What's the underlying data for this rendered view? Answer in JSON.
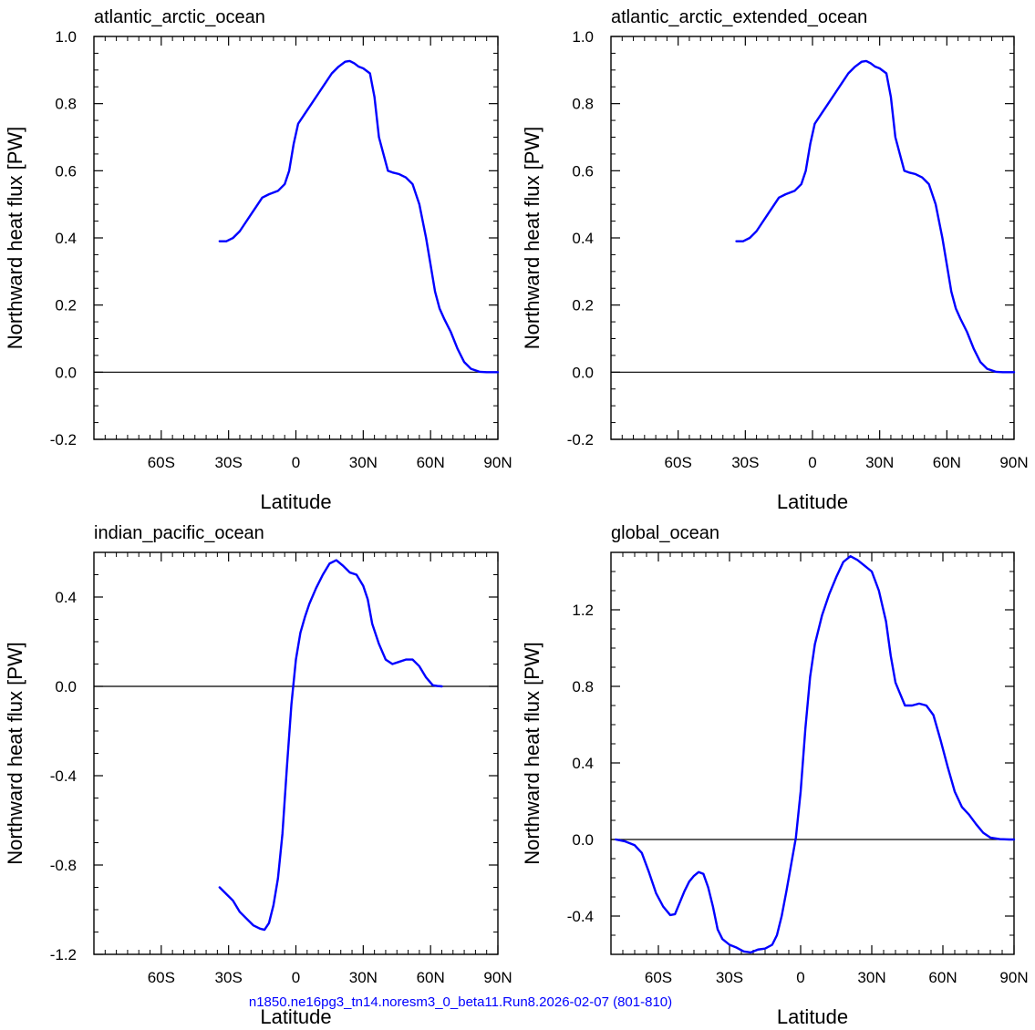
{
  "footnote": "n1850.ne16pg3_tn14.noresm3_0_beta11.Run8.2026-02-07 (801-810)",
  "colors": {
    "curve": "#0000ff",
    "axis": "#000000",
    "footnote": "#0000ff"
  },
  "chart_data": [
    {
      "type": "line",
      "title": "atlantic_arctic_ocean",
      "xlabel": "Latitude",
      "ylabel": "Northward heat flux [PW]",
      "xlim": [
        -90,
        90
      ],
      "ylim": [
        -0.2,
        1.0
      ],
      "xticks": [
        -60,
        -30,
        0,
        30,
        60,
        90
      ],
      "xtick_labels": [
        "60S",
        "30S",
        "0",
        "30N",
        "60N",
        "90N"
      ],
      "yticks": [
        -0.2,
        0.0,
        0.2,
        0.4,
        0.6,
        0.8,
        1.0
      ],
      "ytick_labels": [
        "-0.2",
        "0.0",
        "0.2",
        "0.4",
        "0.6",
        "0.8",
        "1.0"
      ],
      "zero_line": true,
      "series": [
        {
          "x": [
            -34,
            -31,
            -28,
            -25,
            -23,
            -20,
            -17,
            -15,
            -12,
            -8,
            -5,
            -3,
            -1,
            1,
            4,
            7,
            10,
            13,
            16,
            19,
            22,
            24,
            26,
            28,
            30,
            33,
            35,
            37,
            39,
            41,
            43,
            46,
            49,
            52,
            55,
            58,
            60,
            62,
            64,
            66,
            69,
            72,
            75,
            78,
            82,
            85,
            88,
            90
          ],
          "y": [
            0.39,
            0.39,
            0.4,
            0.42,
            0.44,
            0.47,
            0.5,
            0.52,
            0.53,
            0.54,
            0.56,
            0.6,
            0.68,
            0.74,
            0.77,
            0.8,
            0.83,
            0.86,
            0.89,
            0.91,
            0.925,
            0.927,
            0.92,
            0.91,
            0.905,
            0.89,
            0.82,
            0.7,
            0.65,
            0.6,
            0.595,
            0.59,
            0.58,
            0.56,
            0.5,
            0.4,
            0.32,
            0.24,
            0.19,
            0.16,
            0.12,
            0.07,
            0.03,
            0.01,
            0.001,
            0.0,
            0.0,
            0.0
          ]
        }
      ]
    },
    {
      "type": "line",
      "title": "atlantic_arctic_extended_ocean",
      "xlabel": "Latitude",
      "ylabel": "Northward heat flux [PW]",
      "xlim": [
        -90,
        90
      ],
      "ylim": [
        -0.2,
        1.0
      ],
      "xticks": [
        -60,
        -30,
        0,
        30,
        60,
        90
      ],
      "xtick_labels": [
        "60S",
        "30S",
        "0",
        "30N",
        "60N",
        "90N"
      ],
      "yticks": [
        -0.2,
        0.0,
        0.2,
        0.4,
        0.6,
        0.8,
        1.0
      ],
      "ytick_labels": [
        "-0.2",
        "0.0",
        "0.2",
        "0.4",
        "0.6",
        "0.8",
        "1.0"
      ],
      "zero_line": true,
      "series": [
        {
          "x": [
            -34,
            -31,
            -28,
            -25,
            -23,
            -20,
            -17,
            -15,
            -12,
            -8,
            -5,
            -3,
            -1,
            1,
            4,
            7,
            10,
            13,
            16,
            19,
            22,
            24,
            26,
            28,
            30,
            33,
            35,
            37,
            39,
            41,
            43,
            46,
            49,
            52,
            55,
            58,
            60,
            62,
            64,
            66,
            69,
            72,
            75,
            78,
            82,
            85,
            88,
            90
          ],
          "y": [
            0.39,
            0.39,
            0.4,
            0.42,
            0.44,
            0.47,
            0.5,
            0.52,
            0.53,
            0.54,
            0.56,
            0.6,
            0.68,
            0.74,
            0.77,
            0.8,
            0.83,
            0.86,
            0.89,
            0.91,
            0.925,
            0.927,
            0.92,
            0.91,
            0.905,
            0.89,
            0.82,
            0.7,
            0.65,
            0.6,
            0.595,
            0.59,
            0.58,
            0.56,
            0.5,
            0.4,
            0.32,
            0.24,
            0.19,
            0.16,
            0.12,
            0.07,
            0.03,
            0.01,
            0.001,
            0.0,
            0.0,
            0.0
          ]
        }
      ]
    },
    {
      "type": "line",
      "title": "indian_pacific_ocean",
      "xlabel": "Latitude",
      "ylabel": "Northward heat flux [PW]",
      "xlim": [
        -90,
        90
      ],
      "ylim": [
        -1.2,
        0.6
      ],
      "xticks": [
        -60,
        -30,
        0,
        30,
        60,
        90
      ],
      "xtick_labels": [
        "60S",
        "30S",
        "0",
        "30N",
        "60N",
        "90N"
      ],
      "yticks": [
        -1.2,
        -0.8,
        -0.4,
        0.0,
        0.4
      ],
      "ytick_labels": [
        "-1.2",
        "-0.8",
        "-0.4",
        "0.0",
        "0.4"
      ],
      "zero_line": true,
      "series": [
        {
          "x": [
            -34,
            -31,
            -28,
            -25,
            -22,
            -19,
            -16,
            -14,
            -12,
            -10,
            -8,
            -6,
            -4,
            -2,
            0,
            2,
            4,
            6,
            9,
            12,
            15,
            18,
            21,
            24,
            27,
            30,
            32,
            34,
            37,
            40,
            43,
            46,
            49,
            52,
            55,
            58,
            61,
            63,
            65
          ],
          "y": [
            -0.9,
            -0.93,
            -0.96,
            -1.01,
            -1.04,
            -1.07,
            -1.085,
            -1.09,
            -1.06,
            -0.98,
            -0.86,
            -0.66,
            -0.36,
            -0.08,
            0.12,
            0.24,
            0.31,
            0.37,
            0.44,
            0.5,
            0.55,
            0.565,
            0.54,
            0.51,
            0.5,
            0.45,
            0.39,
            0.28,
            0.19,
            0.12,
            0.1,
            0.11,
            0.12,
            0.12,
            0.09,
            0.04,
            0.005,
            0.002,
            0.0
          ]
        }
      ]
    },
    {
      "type": "line",
      "title": "global_ocean",
      "xlabel": "Latitude",
      "ylabel": "Northward heat flux [PW]",
      "xlim": [
        -80,
        90
      ],
      "ylim": [
        -0.6,
        1.5
      ],
      "xticks": [
        -60,
        -30,
        0,
        30,
        60,
        90
      ],
      "xtick_labels": [
        "60S",
        "30S",
        "0",
        "30N",
        "60N",
        "90N"
      ],
      "yticks": [
        -0.4,
        0.0,
        0.4,
        0.8,
        1.2
      ],
      "ytick_labels": [
        "-0.4",
        "0.0",
        "0.4",
        "0.8",
        "1.2"
      ],
      "zero_line": true,
      "series": [
        {
          "x": [
            -78,
            -74,
            -70,
            -67,
            -64,
            -61,
            -58,
            -55,
            -53,
            -51,
            -49,
            -47,
            -45,
            -43,
            -41,
            -39,
            -37,
            -35,
            -33,
            -30,
            -27,
            -24,
            -21,
            -18,
            -15,
            -12,
            -10,
            -8,
            -6,
            -4,
            -2,
            0,
            2,
            4,
            6,
            9,
            12,
            15,
            18,
            21,
            24,
            27,
            30,
            33,
            36,
            38,
            40,
            42,
            44,
            47,
            50,
            53,
            56,
            59,
            62,
            65,
            68,
            71,
            74,
            77,
            80,
            84,
            88,
            90
          ],
          "y": [
            0.0,
            -0.01,
            -0.03,
            -0.07,
            -0.17,
            -0.28,
            -0.35,
            -0.395,
            -0.39,
            -0.33,
            -0.27,
            -0.22,
            -0.19,
            -0.17,
            -0.18,
            -0.25,
            -0.35,
            -0.47,
            -0.52,
            -0.55,
            -0.565,
            -0.585,
            -0.59,
            -0.575,
            -0.57,
            -0.55,
            -0.5,
            -0.4,
            -0.27,
            -0.13,
            0.01,
            0.25,
            0.58,
            0.85,
            1.02,
            1.17,
            1.28,
            1.37,
            1.45,
            1.48,
            1.46,
            1.43,
            1.4,
            1.3,
            1.14,
            0.96,
            0.82,
            0.76,
            0.7,
            0.7,
            0.71,
            0.7,
            0.65,
            0.52,
            0.38,
            0.25,
            0.17,
            0.13,
            0.08,
            0.035,
            0.01,
            0.002,
            0.0,
            0.0
          ]
        }
      ]
    }
  ]
}
